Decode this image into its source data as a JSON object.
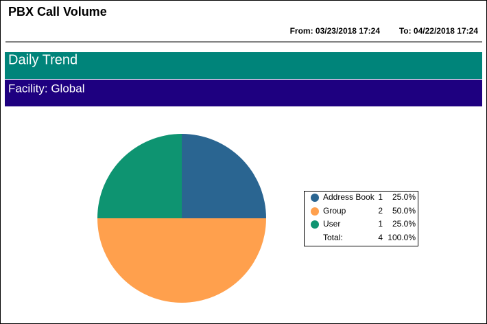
{
  "header": {
    "title": "PBX Call Volume",
    "from": "From: 03/23/2018 17:24",
    "to": "To: 04/22/2018 17:24"
  },
  "sections": {
    "trend": "Daily Trend",
    "facility": "Facility: Global"
  },
  "chart_data": {
    "type": "pie",
    "categories": [
      "Address Book",
      "Group",
      "User"
    ],
    "values": [
      1,
      2,
      1
    ],
    "percents": [
      {
        "value": 25,
        "label": "25.0%"
      },
      {
        "value": 50,
        "label": "50.0%"
      },
      {
        "value": 25,
        "label": "25.0%"
      }
    ],
    "colors": [
      "#2a6591",
      "#ffa04d",
      "#0e9471"
    ],
    "total_label": "Total:",
    "total": 4,
    "total_percent": {
      "value": 100,
      "label": "100.0%"
    }
  }
}
